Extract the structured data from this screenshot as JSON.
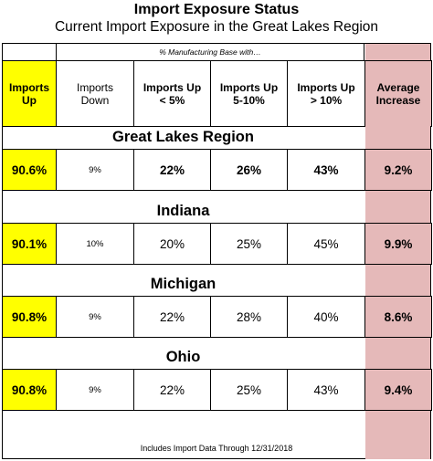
{
  "chart_data": {
    "type": "table",
    "title": "Import Exposure Status",
    "subtitle": "Current Import Exposure in the Great Lakes Region",
    "group_note": "% Manufacturing Base with…",
    "columns": [
      "Imports Up",
      "Imports Down",
      "Imports Up < 5%",
      "Imports Up 5-10%",
      "Imports Up > 10%",
      "Average Increase"
    ],
    "rows": [
      {
        "region": "Great Lakes Region",
        "values": [
          "90.6%",
          "9%",
          "22%",
          "26%",
          "43%",
          "9.2%"
        ]
      },
      {
        "region": "Indiana",
        "values": [
          "90.1%",
          "10%",
          "20%",
          "25%",
          "45%",
          "9.9%"
        ]
      },
      {
        "region": "Michigan",
        "values": [
          "90.8%",
          "9%",
          "22%",
          "28%",
          "40%",
          "8.6%"
        ]
      },
      {
        "region": "Ohio",
        "values": [
          "90.8%",
          "9%",
          "22%",
          "25%",
          "43%",
          "9.4%"
        ]
      }
    ],
    "footer": "Includes Import Data Through 12/31/2018",
    "colors": {
      "imports_up": "#ffff00",
      "average_increase": "#e5b9b9"
    }
  }
}
